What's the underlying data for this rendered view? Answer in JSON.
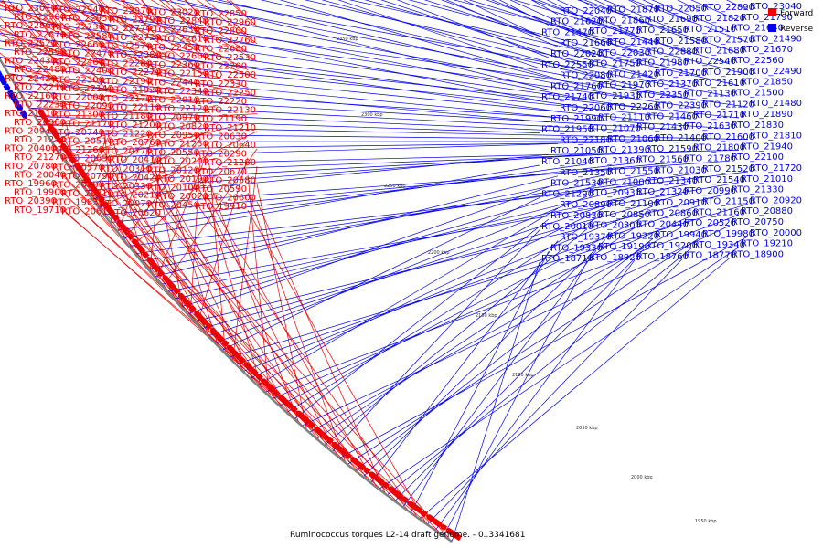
{
  "caption": "Ruminococcus torques L2-14 draft genome. - 0..3341681",
  "legend": {
    "forward": {
      "label": "Forward",
      "color": "#ee0000"
    },
    "reverse": {
      "label": "Reverse",
      "color": "#0000ee"
    }
  },
  "scale_ticks": [
    "2350 kbp",
    "2300 kbp",
    "2250 kbp",
    "2200 kbp",
    "2150 kbp",
    "2100 kbp",
    "2050 kbp",
    "2000 kbp",
    "1950 kbp"
  ],
  "labels": [
    {
      "t": "RTO_23010",
      "s": "f"
    },
    {
      "t": "RTO_23040",
      "s": "r"
    },
    {
      "t": "RTO_22940",
      "s": "f"
    },
    {
      "t": "RTO_22970",
      "s": "f"
    },
    {
      "t": "RTO_23020",
      "s": "f"
    },
    {
      "t": "RTO_22850",
      "s": "f"
    },
    {
      "t": "RTO_22900",
      "s": "f"
    },
    {
      "t": "RTO_22950",
      "s": "f"
    },
    {
      "t": "RTO_22790",
      "s": "f"
    },
    {
      "t": "RTO_22840",
      "s": "f"
    },
    {
      "t": "RTO_22960",
      "s": "f"
    },
    {
      "t": "RTO_22860",
      "s": "f"
    },
    {
      "t": "RTO_22730",
      "s": "f"
    },
    {
      "t": "RTO_22890",
      "s": "r"
    },
    {
      "t": "RTO_22770",
      "s": "f"
    },
    {
      "t": "RTO_22630",
      "s": "f"
    },
    {
      "t": "RTO_22800",
      "s": "f"
    },
    {
      "t": "RTO_22670",
      "s": "f"
    },
    {
      "t": "RTO_22580",
      "s": "f"
    },
    {
      "t": "RTO_22720",
      "s": "f"
    },
    {
      "t": "RTO_22610",
      "s": "f"
    },
    {
      "t": "RTO_22760",
      "s": "f"
    },
    {
      "t": "RTO_22520",
      "s": "f"
    },
    {
      "t": "RTO_22660",
      "s": "f"
    },
    {
      "t": "RTO_22570",
      "s": "f"
    },
    {
      "t": "RTO_22450",
      "s": "f"
    },
    {
      "t": "RTO_22680",
      "s": "f"
    },
    {
      "t": "RTO_22590",
      "s": "f"
    },
    {
      "t": "RTO_22470",
      "s": "f"
    },
    {
      "t": "RTO_22380",
      "s": "f"
    },
    {
      "t": "RTO_22600",
      "s": "f"
    },
    {
      "t": "RTO_22530",
      "s": "f"
    },
    {
      "t": "RTO_22430",
      "s": "f"
    },
    {
      "t": "RTO_22460",
      "s": "f"
    },
    {
      "t": "RTO_22280",
      "s": "f"
    },
    {
      "t": "RTO_22360",
      "s": "f"
    },
    {
      "t": "RTO_22200",
      "s": "f"
    },
    {
      "t": "RTO_22480",
      "s": "f"
    },
    {
      "t": "RTO_22400",
      "s": "f"
    },
    {
      "t": "RTO_22270",
      "s": "f"
    },
    {
      "t": "RTO_22150",
      "s": "f"
    },
    {
      "t": "RTO_22500",
      "s": "f"
    },
    {
      "t": "RTO_22420",
      "s": "f"
    },
    {
      "t": "RTO_22300",
      "s": "f"
    },
    {
      "t": "RTO_22190",
      "s": "f"
    },
    {
      "t": "RTO_22050",
      "s": "r"
    },
    {
      "t": "RTO_22440",
      "s": "f"
    },
    {
      "t": "RTO_22330",
      "s": "f"
    },
    {
      "t": "RTO_22210",
      "s": "f"
    },
    {
      "t": "RTO_22140",
      "s": "f"
    },
    {
      "t": "RTO_21920",
      "s": "f"
    },
    {
      "t": "RTO_22340",
      "s": "f"
    },
    {
      "t": "RTO_22250",
      "s": "f"
    },
    {
      "t": "RTO_22160",
      "s": "f"
    },
    {
      "t": "RTO_22000",
      "s": "f"
    },
    {
      "t": "RTO_21870",
      "s": "r"
    },
    {
      "t": "RTO_22170",
      "s": "f"
    },
    {
      "t": "RTO_22010",
      "s": "f"
    },
    {
      "t": "RTO_22220",
      "s": "f"
    },
    {
      "t": "RTO_22040",
      "s": "r"
    },
    {
      "t": "RTO_21790",
      "s": "r"
    },
    {
      "t": "RTO_22230",
      "s": "f"
    },
    {
      "t": "RTO_22090",
      "s": "f"
    },
    {
      "t": "RTO_21820",
      "s": "r"
    },
    {
      "t": "RTO_21690",
      "s": "r"
    },
    {
      "t": "RTO_22110",
      "s": "f"
    },
    {
      "t": "RTO_21860",
      "s": "r"
    },
    {
      "t": "RTO_22120",
      "s": "f"
    },
    {
      "t": "RTO_21620",
      "s": "r"
    },
    {
      "t": "RTO_22130",
      "s": "f"
    },
    {
      "t": "RTO_21640",
      "s": "r"
    },
    {
      "t": "RTO_21510",
      "s": "r"
    },
    {
      "t": "RTO_21650",
      "s": "r"
    },
    {
      "t": "RTO_21770",
      "s": "r"
    },
    {
      "t": "RTO_21470",
      "s": "r"
    },
    {
      "t": "RTO_21490",
      "s": "r"
    },
    {
      "t": "RTO_21310",
      "s": "f"
    },
    {
      "t": "RTO_21570",
      "s": "r"
    },
    {
      "t": "RTO_21300",
      "s": "f"
    },
    {
      "t": "RTO_21580",
      "s": "r"
    },
    {
      "t": "RTO_21440",
      "s": "r"
    },
    {
      "t": "RTO_21180",
      "s": "f"
    },
    {
      "t": "RTO_21660",
      "s": "r"
    },
    {
      "t": "RTO_20970",
      "s": "f"
    },
    {
      "t": "RTO_21670",
      "s": "r"
    },
    {
      "t": "RTO_21190",
      "s": "f"
    },
    {
      "t": "RTO_20960",
      "s": "f"
    },
    {
      "t": "RTO_21680",
      "s": "r"
    },
    {
      "t": "RTO_21170",
      "s": "f"
    },
    {
      "t": "RTO_21200",
      "s": "f"
    },
    {
      "t": "RTO_20820",
      "s": "f"
    },
    {
      "t": "RTO_21210",
      "s": "f"
    },
    {
      "t": "RTO_20940",
      "s": "f"
    },
    {
      "t": "RTO_20740",
      "s": "f"
    },
    {
      "t": "RTO_21220",
      "s": "f"
    },
    {
      "t": "RTO_20950",
      "s": "f"
    },
    {
      "t": "RTO_20630",
      "s": "f"
    },
    {
      "t": "RTO_21230",
      "s": "f"
    },
    {
      "t": "RTO_20510",
      "s": "f"
    },
    {
      "t": "RTO_20760",
      "s": "f"
    },
    {
      "t": "RTO_21250",
      "s": "f"
    },
    {
      "t": "RTO_20640",
      "s": "f"
    },
    {
      "t": "RTO_20400",
      "s": "f"
    },
    {
      "t": "RTO_21260",
      "s": "f"
    },
    {
      "t": "RTO_20770",
      "s": "f"
    },
    {
      "t": "RTO_20550",
      "s": "f"
    },
    {
      "t": "RTO_20290",
      "s": "f"
    },
    {
      "t": "RTO_21270",
      "s": "f"
    },
    {
      "t": "RTO_20650",
      "s": "f"
    },
    {
      "t": "RTO_20410",
      "s": "f"
    },
    {
      "t": "RTO_20200",
      "s": "f"
    },
    {
      "t": "RTO_21280",
      "s": "f"
    },
    {
      "t": "RTO_20780",
      "s": "f"
    },
    {
      "t": "RTO_20570",
      "s": "f"
    },
    {
      "t": "RTO_20310",
      "s": "f"
    },
    {
      "t": "RTO_20120",
      "s": "f"
    },
    {
      "t": "RTO_20670",
      "s": "f"
    },
    {
      "t": "RTO_20040",
      "s": "f"
    },
    {
      "t": "RTO_20790",
      "s": "f"
    },
    {
      "t": "RTO_20420",
      "s": "f"
    },
    {
      "t": "RTO_20190",
      "s": "f"
    },
    {
      "t": "RTO_20580",
      "s": "f"
    },
    {
      "t": "RTO_19960",
      "s": "f"
    },
    {
      "t": "RTO_20800",
      "s": "f"
    },
    {
      "t": "RTO_20330",
      "s": "f"
    },
    {
      "t": "RTO_20100",
      "s": "f"
    },
    {
      "t": "RTO_20590",
      "s": "f"
    },
    {
      "t": "RTO_19900",
      "s": "f"
    },
    {
      "t": "RTO_20810",
      "s": "f"
    },
    {
      "t": "RTO_20210",
      "s": "f"
    },
    {
      "t": "RTO_20020",
      "s": "f"
    },
    {
      "t": "RTO_20600",
      "s": "f"
    },
    {
      "t": "RTO_20390",
      "s": "f"
    },
    {
      "t": "RTO_19830",
      "s": "f"
    },
    {
      "t": "RTO_20070",
      "s": "f"
    },
    {
      "t": "RTO_20450",
      "s": "f"
    },
    {
      "t": "RTO_19910",
      "s": "f"
    },
    {
      "t": "RTO_19710",
      "s": "f"
    },
    {
      "t": "RTO_20610",
      "s": "f"
    },
    {
      "t": "RTO_20620",
      "s": "f"
    },
    {
      "t": "RTO_22880",
      "s": "r"
    },
    {
      "t": "RTO_22030",
      "s": "r"
    },
    {
      "t": "RTO_22020",
      "s": "r"
    },
    {
      "t": "RTO_22560",
      "s": "r"
    },
    {
      "t": "RTO_22540",
      "s": "r"
    },
    {
      "t": "RTO_21980",
      "s": "r"
    },
    {
      "t": "RTO_21750",
      "s": "r"
    },
    {
      "t": "RTO_22550",
      "s": "r"
    },
    {
      "t": "RTO_22490",
      "s": "r"
    },
    {
      "t": "RTO_21900",
      "s": "r"
    },
    {
      "t": "RTO_21700",
      "s": "r"
    },
    {
      "t": "RTO_21420",
      "s": "r"
    },
    {
      "t": "RTO_22080",
      "s": "r"
    },
    {
      "t": "RTO_21850",
      "s": "r"
    },
    {
      "t": "RTO_21610",
      "s": "r"
    },
    {
      "t": "RTO_21370",
      "s": "r"
    },
    {
      "t": "RTO_21970",
      "s": "r"
    },
    {
      "t": "RTO_21760",
      "s": "r"
    },
    {
      "t": "RTO_21500",
      "s": "r"
    },
    {
      "t": "RTO_21130",
      "s": "r"
    },
    {
      "t": "RTO_22350",
      "s": "r"
    },
    {
      "t": "RTO_21930",
      "s": "r"
    },
    {
      "t": "RTO_21740",
      "s": "r"
    },
    {
      "t": "RTO_21480",
      "s": "r"
    },
    {
      "t": "RTO_21120",
      "s": "r"
    },
    {
      "t": "RTO_22390",
      "s": "r"
    },
    {
      "t": "RTO_22260",
      "s": "r"
    },
    {
      "t": "RTO_22060",
      "s": "r"
    },
    {
      "t": "RTO_21890",
      "s": "r"
    },
    {
      "t": "RTO_21710",
      "s": "r"
    },
    {
      "t": "RTO_21460",
      "s": "r"
    },
    {
      "t": "RTO_21110",
      "s": "r"
    },
    {
      "t": "RTO_21990",
      "s": "r"
    },
    {
      "t": "RTO_21830",
      "s": "r"
    },
    {
      "t": "RTO_21630",
      "s": "r"
    },
    {
      "t": "RTO_21430",
      "s": "r"
    },
    {
      "t": "RTO_21070",
      "s": "r"
    },
    {
      "t": "RTO_21950",
      "s": "r"
    },
    {
      "t": "RTO_21810",
      "s": "r"
    },
    {
      "t": "RTO_21600",
      "s": "r"
    },
    {
      "t": "RTO_21400",
      "s": "r"
    },
    {
      "t": "RTO_21060",
      "s": "r"
    },
    {
      "t": "RTO_22180",
      "s": "r"
    },
    {
      "t": "RTO_21940",
      "s": "r"
    },
    {
      "t": "RTO_21800",
      "s": "r"
    },
    {
      "t": "RTO_21590",
      "s": "r"
    },
    {
      "t": "RTO_21390",
      "s": "r"
    },
    {
      "t": "RTO_21050",
      "s": "r"
    },
    {
      "t": "RTO_22100",
      "s": "r"
    },
    {
      "t": "RTO_21780",
      "s": "r"
    },
    {
      "t": "RTO_21560",
      "s": "r"
    },
    {
      "t": "RTO_21360",
      "s": "r"
    },
    {
      "t": "RTO_21040",
      "s": "r"
    },
    {
      "t": "RTO_21720",
      "s": "r"
    },
    {
      "t": "RTO_21520",
      "s": "r"
    },
    {
      "t": "RTO_21030",
      "s": "r"
    },
    {
      "t": "RTO_21550",
      "s": "r"
    },
    {
      "t": "RTO_21350",
      "s": "r"
    },
    {
      "t": "RTO_21010",
      "s": "r"
    },
    {
      "t": "RTO_21540",
      "s": "r"
    },
    {
      "t": "RTO_21340",
      "s": "r"
    },
    {
      "t": "RTO_21000",
      "s": "r"
    },
    {
      "t": "RTO_21530",
      "s": "r"
    },
    {
      "t": "RTO_21330",
      "s": "r"
    },
    {
      "t": "RTO_20990",
      "s": "r"
    },
    {
      "t": "RTO_21320",
      "s": "r"
    },
    {
      "t": "RTO_20930",
      "s": "r"
    },
    {
      "t": "RTO_21290",
      "s": "r"
    },
    {
      "t": "RTO_20920",
      "s": "r"
    },
    {
      "t": "RTO_21150",
      "s": "r"
    },
    {
      "t": "RTO_20910",
      "s": "r"
    },
    {
      "t": "RTO_21100",
      "s": "r"
    },
    {
      "t": "RTO_20890",
      "s": "r"
    },
    {
      "t": "RTO_20880",
      "s": "r"
    },
    {
      "t": "RTO_21160",
      "s": "r"
    },
    {
      "t": "RTO_20860",
      "s": "r"
    },
    {
      "t": "RTO_20850",
      "s": "r"
    },
    {
      "t": "RTO_20830",
      "s": "r"
    },
    {
      "t": "RTO_20750",
      "s": "r"
    },
    {
      "t": "RTO_20520",
      "s": "r"
    },
    {
      "t": "RTO_20440",
      "s": "r"
    },
    {
      "t": "RTO_20300",
      "s": "r"
    },
    {
      "t": "RTO_20010",
      "s": "r"
    },
    {
      "t": "RTO_20000",
      "s": "r"
    },
    {
      "t": "RTO_19980",
      "s": "r"
    },
    {
      "t": "RTO_19940",
      "s": "r"
    },
    {
      "t": "RTO_19220",
      "s": "r"
    },
    {
      "t": "RTO_19370",
      "s": "r"
    },
    {
      "t": "RTO_19210",
      "s": "r"
    },
    {
      "t": "RTO_19340",
      "s": "r"
    },
    {
      "t": "RTO_19200",
      "s": "r"
    },
    {
      "t": "RTO_19190",
      "s": "r"
    },
    {
      "t": "RTO_19330",
      "s": "r"
    },
    {
      "t": "RTO_18900",
      "s": "r"
    },
    {
      "t": "RTO_18770",
      "s": "r"
    },
    {
      "t": "RTO_18760",
      "s": "r"
    },
    {
      "t": "RTO_18920",
      "s": "r"
    },
    {
      "t": "RTO_18710",
      "s": "r"
    }
  ]
}
